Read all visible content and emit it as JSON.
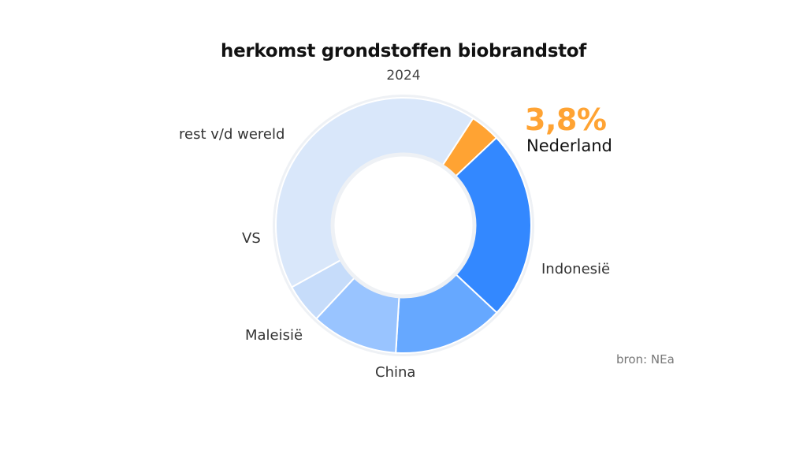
{
  "chart_data": {
    "type": "pie",
    "title": "herkomst grondstoffen biobrandstof",
    "subtitle": "2024",
    "unit": "%",
    "slices": [
      {
        "name": "Nederland",
        "value": 3.8,
        "value_label": "3,8%",
        "color": "#ffa333"
      },
      {
        "name": "Indonesië",
        "value": 24,
        "color": "#3388ff"
      },
      {
        "name": "China",
        "value": 14,
        "color": "#66a8ff"
      },
      {
        "name": "Maleisië",
        "value": 11,
        "color": "#99c4ff"
      },
      {
        "name": "VS",
        "value": 5,
        "color": "#c6dcfa"
      },
      {
        "name": "rest v/d wereld",
        "value": 42.2,
        "color": "#d9e7fa"
      }
    ],
    "highlight_color": "#ffa333",
    "source": "bron: NEa"
  }
}
